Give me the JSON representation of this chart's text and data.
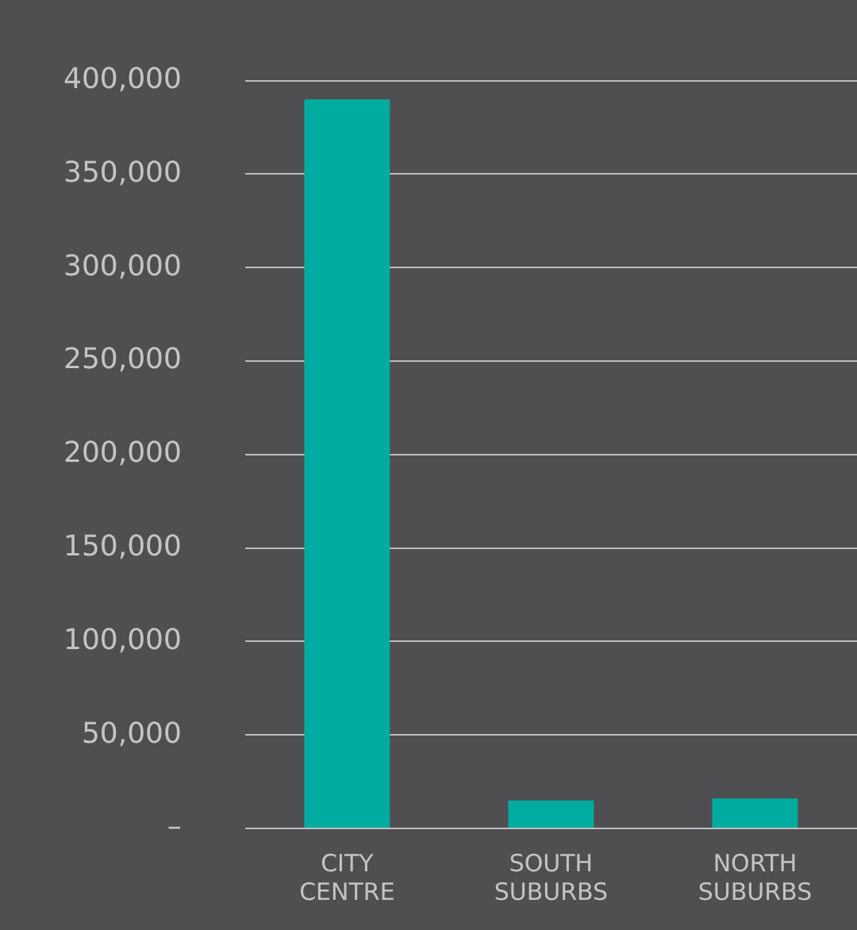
{
  "chart_data": {
    "type": "bar",
    "categories": [
      "CITY CENTRE",
      "SOUTH SUBURBS",
      "NORTH SUBURBS"
    ],
    "values": [
      390000,
      15000,
      16000
    ],
    "color": "#00ac9f",
    "ylim": [
      0,
      400000
    ],
    "yticks": [
      {
        "value": 0,
        "label": "–"
      },
      {
        "value": 50000,
        "label": "50,000"
      },
      {
        "value": 100000,
        "label": "100,000"
      },
      {
        "value": 150000,
        "label": "150,000"
      },
      {
        "value": 200000,
        "label": "200,000"
      },
      {
        "value": 250000,
        "label": "250,000"
      },
      {
        "value": 300000,
        "label": "300,000"
      },
      {
        "value": 350000,
        "label": "350,000"
      },
      {
        "value": 400000,
        "label": "400,000"
      }
    ],
    "grid": "y",
    "legend": false
  }
}
